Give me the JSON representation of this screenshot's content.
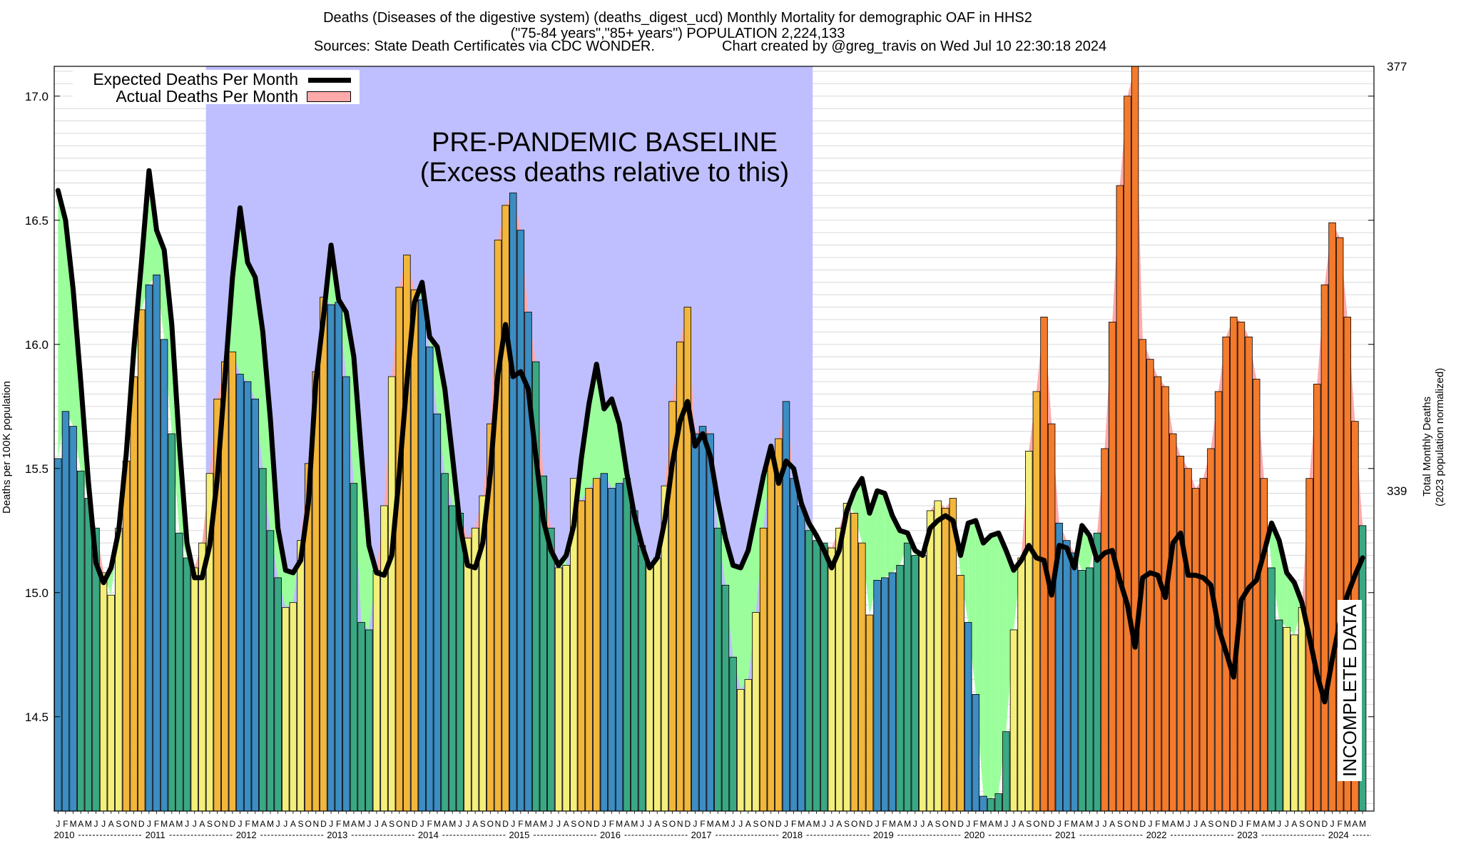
{
  "header": {
    "line1": "Deaths (Diseases of the digestive system) (deaths_digest_ucd) Monthly Mortality for demographic OAF in HHS2",
    "line2": "(\"75-84 years\",\"85+ years\") POPULATION 2,224,133",
    "sources": "Sources: State Death Certificates via CDC WONDER.",
    "created": "Chart created by @greg_travis on Wed Jul 10 22:30:18 2024"
  },
  "legend": {
    "expected": "Expected Deaths Per Month",
    "actual": "Actual Deaths Per Month"
  },
  "annotations": {
    "baseline_line1": "PRE-PANDEMIC BASELINE",
    "baseline_line2": "(Excess deaths relative to this)",
    "incomplete": "INCOMPLETE DATA"
  },
  "colors": {
    "winter": "#3b8dc2",
    "summer": "#f3ef7a",
    "autumn": "#f2b63a",
    "spring": "#3aa883",
    "excess": "#f47a2c",
    "deficit": "#9aff9a",
    "baseline_region": "#bfbfff",
    "excess_fill": "#ffaaaa"
  },
  "chart_data": {
    "type": "bar",
    "ylabel": "Deaths per 100K population",
    "ylabel_right_line1": "Total Monthly Deaths",
    "ylabel_right_line2": "(2023 population normalized)",
    "ylim": [
      14.12,
      17.12
    ],
    "yticks": [
      "14.5",
      "15.0",
      "15.5",
      "16.0",
      "16.5",
      "17.0"
    ],
    "right_ticks": [
      {
        "value": 15.41,
        "label": "339"
      },
      {
        "value": 17.12,
        "label": "377"
      }
    ],
    "month_letters": [
      "J",
      "F",
      "M",
      "A",
      "M",
      "J",
      "J",
      "A",
      "S",
      "O",
      "N",
      "D"
    ],
    "years": [
      "2010",
      "2011",
      "2012",
      "2013",
      "2014",
      "2015",
      "2016",
      "2017",
      "2018",
      "2019",
      "2020",
      "2021",
      "2022",
      "2023",
      "2024"
    ],
    "baseline_months": [
      20,
      100
    ],
    "incomplete_months": [
      176,
      180
    ],
    "actual": [
      15.54,
      15.73,
      15.67,
      15.49,
      15.38,
      15.26,
      15.08,
      14.99,
      15.26,
      15.53,
      15.87,
      16.14,
      16.24,
      16.28,
      16.02,
      15.64,
      15.24,
      15.14,
      15.1,
      15.2,
      15.48,
      15.78,
      15.93,
      15.97,
      15.88,
      15.85,
      15.78,
      15.5,
      15.25,
      15.06,
      14.94,
      14.96,
      15.21,
      15.52,
      15.89,
      16.19,
      16.16,
      16.17,
      15.87,
      15.44,
      14.88,
      14.85,
      15.09,
      15.35,
      15.87,
      16.23,
      16.36,
      16.22,
      16.18,
      15.99,
      15.72,
      15.48,
      15.35,
      15.32,
      15.22,
      15.26,
      15.39,
      15.68,
      16.42,
      16.56,
      16.61,
      16.46,
      16.13,
      15.93,
      15.47,
      15.26,
      15.1,
      15.11,
      15.46,
      15.37,
      15.42,
      15.46,
      15.48,
      15.42,
      15.44,
      15.46,
      15.33,
      15.19,
      15.11,
      15.14,
      15.43,
      15.77,
      16.01,
      16.15,
      15.64,
      15.67,
      15.64,
      15.26,
      15.03,
      14.74,
      14.61,
      14.65,
      14.92,
      15.26,
      15.54,
      15.62,
      15.77,
      15.46,
      15.35,
      15.25,
      15.21,
      15.2,
      15.18,
      15.26,
      15.36,
      15.32,
      15.2,
      14.91,
      15.05,
      15.06,
      15.08,
      15.11,
      15.2,
      15.15,
      15.15,
      15.33,
      15.37,
      15.34,
      15.38,
      15.07,
      14.88,
      14.59,
      14.18,
      14.17,
      14.19,
      14.44,
      14.85,
      15.14,
      15.57,
      15.81,
      16.11,
      15.68,
      15.28,
      15.21,
      15.16,
      15.09,
      15.1,
      15.24,
      15.58,
      16.09,
      16.64,
      17.0,
      17.2,
      16.02,
      15.94,
      15.87,
      15.83,
      15.64,
      15.55,
      15.5,
      15.42,
      15.46,
      15.58,
      15.81,
      16.03,
      16.11,
      16.09,
      16.03,
      15.86,
      15.46,
      15.1,
      14.89,
      14.86,
      14.83,
      14.94,
      15.46,
      15.84,
      16.24,
      16.49,
      16.43,
      16.11,
      15.69,
      15.27
    ],
    "expected": [
      16.62,
      16.5,
      16.22,
      15.85,
      15.45,
      15.12,
      15.04,
      15.1,
      15.25,
      15.56,
      15.98,
      16.33,
      16.7,
      16.46,
      16.38,
      16.08,
      15.6,
      15.2,
      15.06,
      15.06,
      15.19,
      15.46,
      15.86,
      16.27,
      16.55,
      16.33,
      16.27,
      16.05,
      15.7,
      15.26,
      15.09,
      15.08,
      15.13,
      15.36,
      15.85,
      16.11,
      16.4,
      16.18,
      16.13,
      15.95,
      15.56,
      15.19,
      15.08,
      15.07,
      15.15,
      15.48,
      15.85,
      16.17,
      16.25,
      16.03,
      15.99,
      15.82,
      15.55,
      15.27,
      15.11,
      15.1,
      15.2,
      15.48,
      15.88,
      16.08,
      15.87,
      15.89,
      15.82,
      15.55,
      15.29,
      15.17,
      15.11,
      15.15,
      15.27,
      15.54,
      15.76,
      15.92,
      15.74,
      15.78,
      15.68,
      15.48,
      15.31,
      15.19,
      15.1,
      15.14,
      15.29,
      15.52,
      15.69,
      15.77,
      15.59,
      15.64,
      15.55,
      15.37,
      15.22,
      15.11,
      15.1,
      15.17,
      15.32,
      15.47,
      15.59,
      15.44,
      15.53,
      15.5,
      15.36,
      15.28,
      15.23,
      15.17,
      15.1,
      15.17,
      15.33,
      15.41,
      15.46,
      15.32,
      15.41,
      15.4,
      15.31,
      15.25,
      15.24,
      15.17,
      15.15,
      15.26,
      15.29,
      15.31,
      15.29,
      15.15,
      15.28,
      15.29,
      15.2,
      15.23,
      15.24,
      15.17,
      15.09,
      15.13,
      15.19,
      15.14,
      15.13,
      14.99,
      15.19,
      15.18,
      15.1,
      15.27,
      15.23,
      15.13,
      15.16,
      15.17,
      15.05,
      14.95,
      14.78,
      15.06,
      15.08,
      15.07,
      14.98,
      15.2,
      15.24,
      15.07,
      15.07,
      15.06,
      15.03,
      14.86,
      14.76,
      14.66,
      14.97,
      15.02,
      15.05,
      15.16,
      15.28,
      15.21,
      15.08,
      15.04,
      14.96,
      14.82,
      14.67,
      14.56,
      14.73,
      14.88,
      14.99,
      15.07,
      15.14
    ]
  }
}
